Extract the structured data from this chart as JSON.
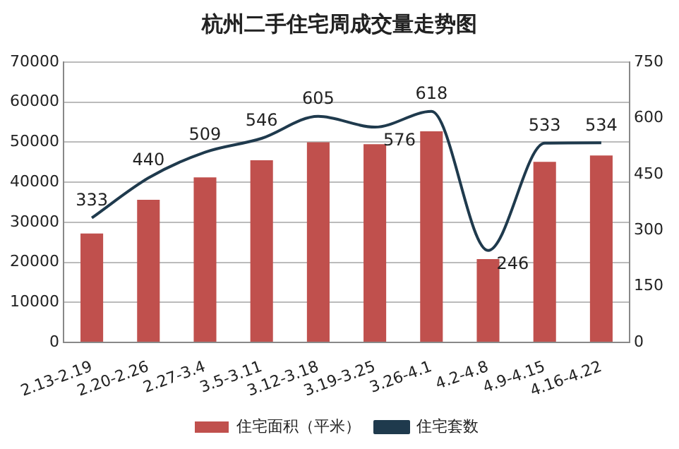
{
  "chart_data": {
    "type": "bar",
    "title": "杭州二手住宅周成交量走势图",
    "categories": [
      "2.13-2.19",
      "2.20-2.26",
      "2.27-3.4",
      "3.5-3.11",
      "3.12-3.18",
      "3.19-3.25",
      "3.26-4.1",
      "4.2-4.8",
      "4.9-4.15",
      "4.16-4.22"
    ],
    "series": [
      {
        "name": "住宅面积（平米）",
        "color": "#c0504d",
        "values": [
          27200,
          35600,
          41200,
          45500,
          50000,
          49500,
          52700,
          20800,
          45100,
          46700
        ]
      },
      {
        "name": "住宅套数",
        "type": "line",
        "axis": "y2",
        "color": "#1f3a4d",
        "data_labels": true,
        "values": [
          333,
          440,
          509,
          546,
          605,
          576,
          618,
          246,
          533,
          534
        ]
      }
    ],
    "ylim": [
      0,
      70000
    ],
    "yticks": [
      0,
      10000,
      20000,
      30000,
      40000,
      50000,
      60000,
      70000
    ],
    "y2lim": [
      0,
      750
    ],
    "y2ticks": [
      0,
      150,
      300,
      450,
      600,
      750
    ],
    "grid": "y",
    "legend": "bottom",
    "marker": "none"
  }
}
